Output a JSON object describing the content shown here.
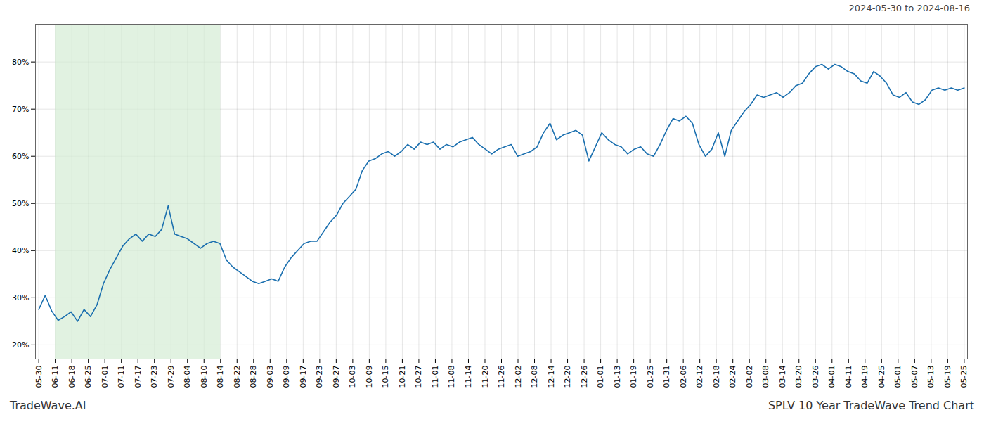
{
  "chart_data": {
    "type": "line",
    "title": "2024-05-30 to 2024-08-16",
    "annotations": [
      "TradeWave.AI",
      "SPLV 10 Year TradeWave Trend Chart"
    ],
    "color": "#1a6faf",
    "grid": true,
    "shade": {
      "x1": 2.553571,
      "x2": 28.089286,
      "color": "#d4ecd4"
    },
    "xlim": [
      -0.5,
      143.5
    ],
    "ylim": [
      17,
      88
    ],
    "yticks": [
      {
        "value": 20,
        "label": "20%"
      },
      {
        "value": 30,
        "label": "30%"
      },
      {
        "value": 40,
        "label": "40%"
      },
      {
        "value": 50,
        "label": "50%"
      },
      {
        "value": 60,
        "label": "60%"
      },
      {
        "value": 70,
        "label": "70%"
      },
      {
        "value": 80,
        "label": "80%"
      }
    ],
    "xticks": [
      {
        "value": 0,
        "label": "05-30"
      },
      {
        "value": 2.553571,
        "label": "06-11"
      },
      {
        "value": 5.107143,
        "label": "06-18"
      },
      {
        "value": 7.660714,
        "label": "06-25"
      },
      {
        "value": 10.214286,
        "label": "07-01"
      },
      {
        "value": 12.767857,
        "label": "07-11"
      },
      {
        "value": 15.321429,
        "label": "07-17"
      },
      {
        "value": 17.875,
        "label": "07-23"
      },
      {
        "value": 20.428571,
        "label": "07-29"
      },
      {
        "value": 22.982143,
        "label": "08-04"
      },
      {
        "value": 25.535714,
        "label": "08-10"
      },
      {
        "value": 28.089286,
        "label": "08-14"
      },
      {
        "value": 30.642857,
        "label": "08-22"
      },
      {
        "value": 33.196429,
        "label": "08-28"
      },
      {
        "value": 35.75,
        "label": "09-03"
      },
      {
        "value": 38.303571,
        "label": "09-09"
      },
      {
        "value": 40.857143,
        "label": "09-17"
      },
      {
        "value": 43.410714,
        "label": "09-23"
      },
      {
        "value": 45.964286,
        "label": "09-27"
      },
      {
        "value": 48.517857,
        "label": "10-03"
      },
      {
        "value": 51.071429,
        "label": "10-09"
      },
      {
        "value": 53.625,
        "label": "10-15"
      },
      {
        "value": 56.178571,
        "label": "10-21"
      },
      {
        "value": 58.732143,
        "label": "10-27"
      },
      {
        "value": 61.285714,
        "label": "11-01"
      },
      {
        "value": 63.839286,
        "label": "11-08"
      },
      {
        "value": 66.392857,
        "label": "11-14"
      },
      {
        "value": 68.946429,
        "label": "11-20"
      },
      {
        "value": 71.5,
        "label": "11-26"
      },
      {
        "value": 74.053571,
        "label": "12-02"
      },
      {
        "value": 76.607143,
        "label": "12-08"
      },
      {
        "value": 79.160714,
        "label": "12-14"
      },
      {
        "value": 81.714286,
        "label": "12-20"
      },
      {
        "value": 84.267857,
        "label": "12-26"
      },
      {
        "value": 86.821429,
        "label": "01-01"
      },
      {
        "value": 89.375,
        "label": "01-13"
      },
      {
        "value": 91.928571,
        "label": "01-19"
      },
      {
        "value": 94.482143,
        "label": "01-25"
      },
      {
        "value": 97.035714,
        "label": "01-31"
      },
      {
        "value": 99.589286,
        "label": "02-06"
      },
      {
        "value": 102.142857,
        "label": "02-12"
      },
      {
        "value": 104.696429,
        "label": "02-18"
      },
      {
        "value": 107.25,
        "label": "02-24"
      },
      {
        "value": 109.803571,
        "label": "03-02"
      },
      {
        "value": 112.357143,
        "label": "03-08"
      },
      {
        "value": 114.910714,
        "label": "03-14"
      },
      {
        "value": 117.464286,
        "label": "03-20"
      },
      {
        "value": 120.017857,
        "label": "03-26"
      },
      {
        "value": 122.571429,
        "label": "04-01"
      },
      {
        "value": 125.125,
        "label": "04-11"
      },
      {
        "value": 127.678571,
        "label": "04-19"
      },
      {
        "value": 130.232143,
        "label": "04-25"
      },
      {
        "value": 132.785714,
        "label": "05-01"
      },
      {
        "value": 135.339286,
        "label": "05-07"
      },
      {
        "value": 137.892857,
        "label": "05-13"
      },
      {
        "value": 140.446429,
        "label": "05-19"
      },
      {
        "value": 143,
        "label": "05-25"
      }
    ],
    "x": [
      0,
      1,
      2,
      3,
      4,
      5,
      6,
      7,
      8,
      9,
      10,
      11,
      12,
      13,
      14,
      15,
      16,
      17,
      18,
      19,
      20,
      21,
      22,
      23,
      24,
      25,
      26,
      27,
      28,
      29,
      30,
      31,
      32,
      33,
      34,
      35,
      36,
      37,
      38,
      39,
      40,
      41,
      42,
      43,
      44,
      45,
      46,
      47,
      48,
      49,
      50,
      51,
      52,
      53,
      54,
      55,
      56,
      57,
      58,
      59,
      60,
      61,
      62,
      63,
      64,
      65,
      66,
      67,
      68,
      69,
      70,
      71,
      72,
      73,
      74,
      75,
      76,
      77,
      78,
      79,
      80,
      81,
      82,
      83,
      84,
      85,
      86,
      87,
      88,
      89,
      90,
      91,
      92,
      93,
      94,
      95,
      96,
      97,
      98,
      99,
      100,
      101,
      102,
      103,
      104,
      105,
      106,
      107,
      108,
      109,
      110,
      111,
      112,
      113,
      114,
      115,
      116,
      117,
      118,
      119,
      120,
      121,
      122,
      123,
      124,
      125,
      126,
      127,
      128,
      129,
      130,
      131,
      132,
      133,
      134,
      135,
      136,
      137,
      138,
      139,
      140,
      141,
      142,
      143
    ],
    "values": [
      27.5,
      30.5,
      27.2,
      25.2,
      26.0,
      27.0,
      25.0,
      27.5,
      26.0,
      28.5,
      33.0,
      36.0,
      38.5,
      41.0,
      42.5,
      43.5,
      42.0,
      43.5,
      43.0,
      44.5,
      49.5,
      43.5,
      43.0,
      42.5,
      41.5,
      40.5,
      41.5,
      42.0,
      41.5,
      38.0,
      36.5,
      35.5,
      34.5,
      33.5,
      33.0,
      33.5,
      34.0,
      33.5,
      36.5,
      38.5,
      40.0,
      41.5,
      42.0,
      42.0,
      44.0,
      46.0,
      47.5,
      50.0,
      51.5,
      53.0,
      57.0,
      59.0,
      59.5,
      60.5,
      61.0,
      60.0,
      61.0,
      62.5,
      61.5,
      63.0,
      62.5,
      63.0,
      61.5,
      62.5,
      62.0,
      63.0,
      63.5,
      64.0,
      62.5,
      61.5,
      60.5,
      61.5,
      62.0,
      62.5,
      60.0,
      60.5,
      61.0,
      62.0,
      65.0,
      67.0,
      63.5,
      64.5,
      65.0,
      65.5,
      64.5,
      59.0,
      62.0,
      65.0,
      63.5,
      62.5,
      62.0,
      60.5,
      61.5,
      62.0,
      60.5,
      60.0,
      62.5,
      65.5,
      68.0,
      67.5,
      68.5,
      67.0,
      62.5,
      60.0,
      61.5,
      65.0,
      60.0,
      65.5,
      67.5,
      69.5,
      71.0,
      73.0,
      72.5,
      73.0,
      73.5,
      72.5,
      73.5,
      75.0,
      75.5,
      77.5,
      79.0,
      79.5,
      78.5,
      79.5,
      79.0,
      78.0,
      77.5,
      76.0,
      75.5,
      78.0,
      77.0,
      75.5,
      73.0,
      72.5,
      73.5,
      71.5,
      71.0,
      72.0,
      74.0,
      74.5,
      74.0,
      74.5,
      74.0,
      74.5
    ]
  }
}
